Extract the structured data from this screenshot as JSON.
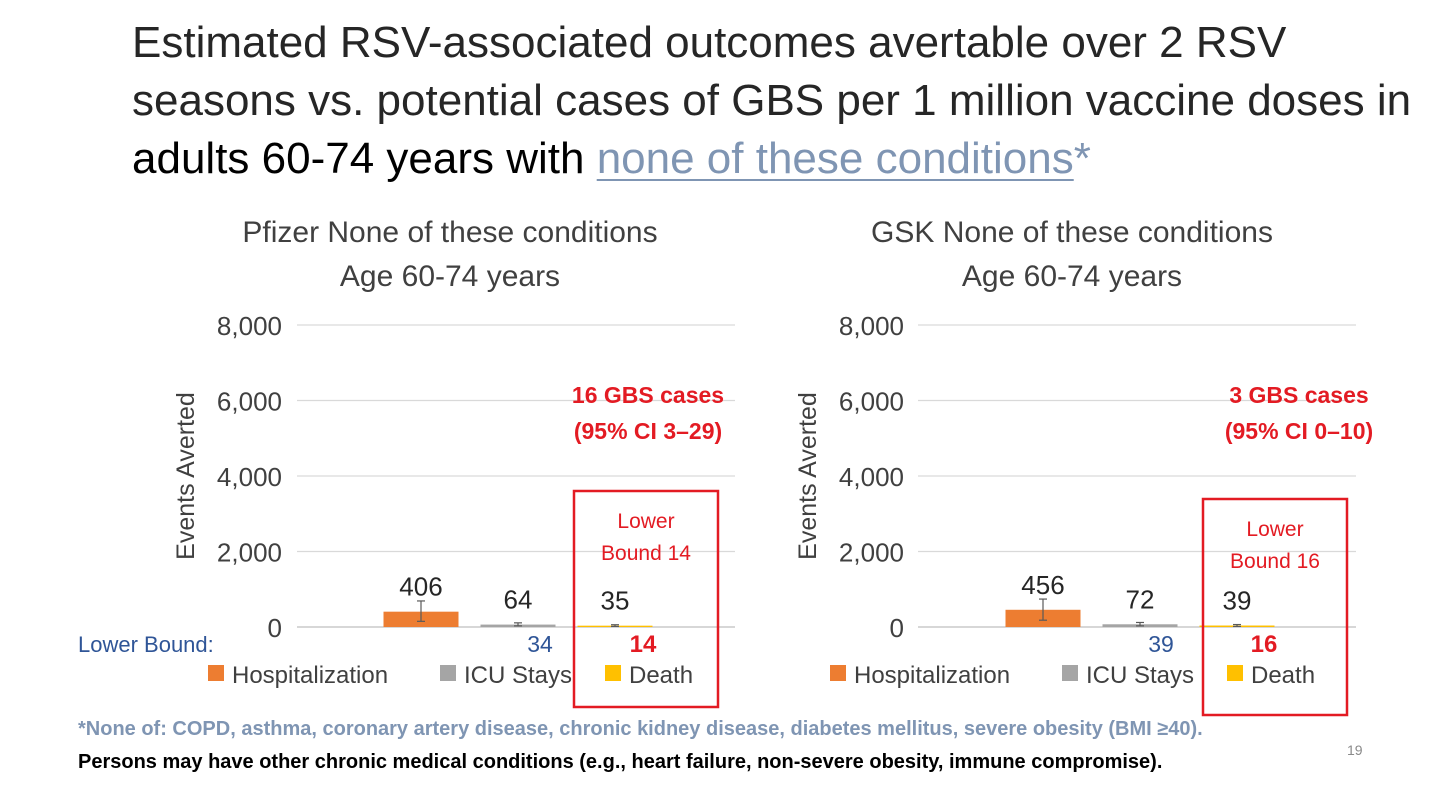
{
  "title": {
    "part1": "Estimated RSV-associated outcomes avertable over 2 RSV seasons vs. potential cases of GBS per 1 million vaccine doses in ",
    "bold": "adults 60-74 years with",
    "link": "none of these conditions",
    "star": "*"
  },
  "colors": {
    "hospitalization": "#ed7d31",
    "icu": "#a5a5a5",
    "death": "#ffc000",
    "red": "#e31b23",
    "blue": "#2f5597",
    "grid": "#d9d9d9"
  },
  "chart_data": [
    {
      "type": "bar",
      "title_line1": "Pfizer None of these conditions",
      "title_line2": "Age 60-74 years",
      "ylabel": "Events Averted",
      "ylim": [
        0,
        8000
      ],
      "yticks": [
        "0",
        "2,000",
        "4,000",
        "6,000",
        "8,000"
      ],
      "categories": [
        "Hospitalization",
        "ICU Stays",
        "Death"
      ],
      "values": [
        406,
        64,
        35
      ],
      "value_labels": [
        "406",
        "64",
        "35"
      ],
      "error_bars": [
        [
          150,
          690
        ],
        [
          30,
          110
        ],
        [
          15,
          60
        ]
      ],
      "lower_bound_label": "Lower Bound:",
      "lower_bounds": [
        "34",
        "14"
      ],
      "gbs_line1": "16 GBS cases",
      "gbs_line2": "(95% CI 3–29)",
      "box_line1": "Lower",
      "box_line2": "Bound 14"
    },
    {
      "type": "bar",
      "title_line1": "GSK None of these conditions",
      "title_line2": "Age 60-74 years",
      "ylabel": "Events Averted",
      "ylim": [
        0,
        8000
      ],
      "yticks": [
        "0",
        "2,000",
        "4,000",
        "6,000",
        "8,000"
      ],
      "categories": [
        "Hospitalization",
        "ICU Stays",
        "Death"
      ],
      "values": [
        456,
        72,
        39
      ],
      "value_labels": [
        "456",
        "72",
        "39"
      ],
      "error_bars": [
        [
          180,
          740
        ],
        [
          30,
          120
        ],
        [
          15,
          65
        ]
      ],
      "lower_bounds": [
        "39",
        "16"
      ],
      "gbs_line1": "3 GBS cases",
      "gbs_line2": "(95% CI 0–10)",
      "box_line1": "Lower",
      "box_line2": "Bound 16"
    }
  ],
  "footer": {
    "line1": "*None of: COPD, asthma, coronary artery disease, chronic kidney disease, diabetes mellitus, severe obesity (BMI ≥40).",
    "line2": "Persons may have other chronic medical conditions (e.g., heart failure, non-severe obesity, immune compromise).",
    "page": "19"
  }
}
